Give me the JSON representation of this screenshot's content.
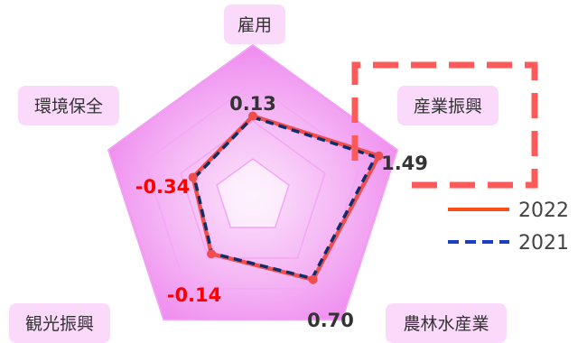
{
  "chart_data": {
    "type": "radar",
    "axes": [
      "雇用",
      "産業振興",
      "農林水産業",
      "観光振興",
      "環境保全"
    ],
    "series": [
      {
        "name": "2022",
        "values": [
          0.13,
          1.49,
          0.7,
          -0.14,
          -0.34
        ],
        "color": "#f04e4e",
        "style": "solid"
      },
      {
        "name": "2021",
        "values": [
          0.1,
          1.4,
          0.66,
          -0.16,
          -0.38
        ],
        "color": "#0d2d6b",
        "style": "dashed"
      }
    ],
    "data_labels": [
      "0.13",
      "1.49",
      "0.70",
      "-0.14",
      "-0.34"
    ],
    "label_colors": [
      "#333333",
      "#333333",
      "#333333",
      "#ff0000",
      "#ff0000"
    ],
    "rlim": [
      -2,
      2
    ],
    "ring_levels": [
      -1,
      0,
      1,
      2
    ],
    "legend": {
      "placement": "right",
      "entries": [
        "2022",
        "2021"
      ],
      "colors": [
        "#ff4d1a",
        "#1a3fc4"
      ]
    },
    "highlight_color": "#ff5a5a",
    "fill_color": "#ee82ee"
  }
}
